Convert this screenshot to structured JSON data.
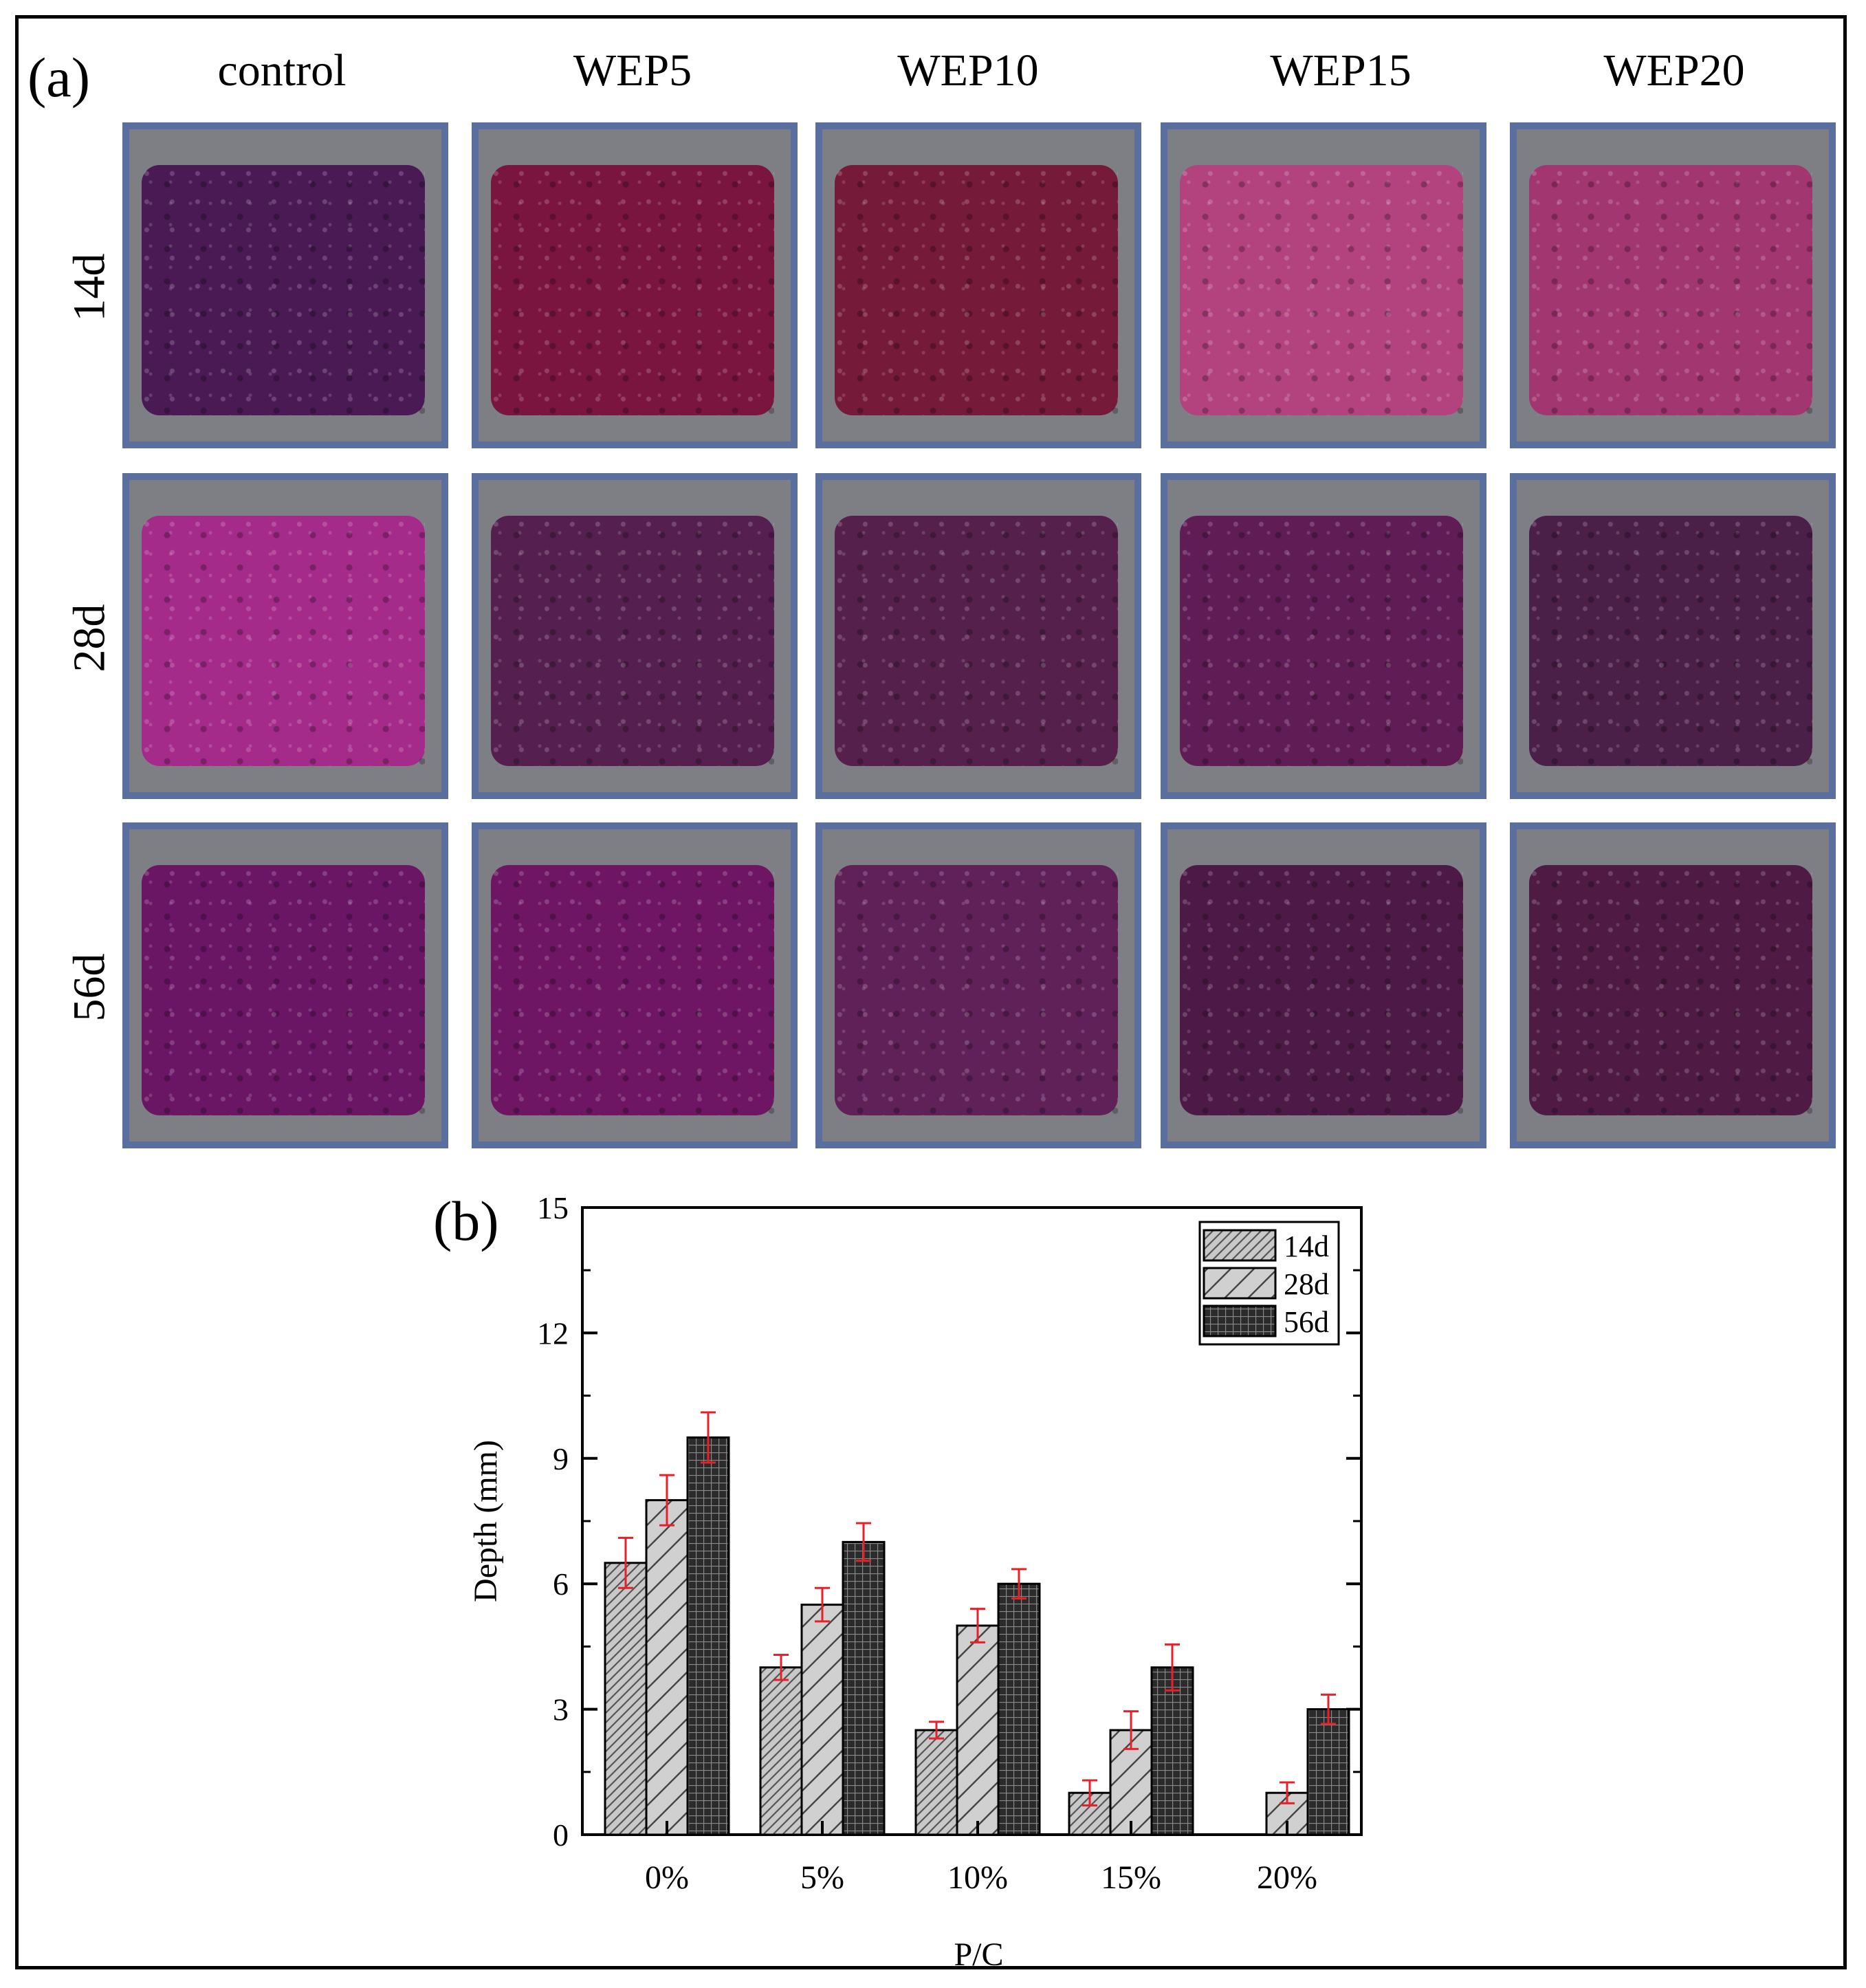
{
  "figure": {
    "panel_a_label": "(a)",
    "panel_b_label": "(b)"
  },
  "photo_grid": {
    "columns": [
      "control",
      "WEP5",
      "WEP10",
      "WEP15",
      "WEP20"
    ],
    "rows": [
      "14d",
      "28d",
      "56d"
    ],
    "stain_colors": [
      [
        "#4a1a55",
        "#7a1540",
        "#761a3a",
        "#b3437f",
        "#a23670"
      ],
      [
        "#a42b8a",
        "#55204f",
        "#56204c",
        "#601c55",
        "#4a1f48"
      ],
      [
        "#6b1565",
        "#6e1663",
        "#602058",
        "#4d1a47",
        "#4f1b45"
      ]
    ]
  },
  "chart_data": {
    "type": "bar",
    "categories": [
      "0%",
      "5%",
      "10%",
      "15%",
      "20%"
    ],
    "xlabel": "P/C",
    "ylabel": "Depth (mm)",
    "ylim": [
      0,
      15
    ],
    "yticks": [
      0,
      3,
      6,
      9,
      12,
      15
    ],
    "legend_placement": "top-right",
    "series": [
      {
        "name": "14d",
        "values": [
          6.5,
          4.0,
          2.5,
          1.0,
          0
        ],
        "errors": [
          0.6,
          0.3,
          0.2,
          0.3,
          0
        ],
        "fill": "#c8c8c8",
        "pattern": "diagonal-dense"
      },
      {
        "name": "28d",
        "values": [
          8.0,
          5.5,
          5.0,
          2.5,
          1.0
        ],
        "errors": [
          0.6,
          0.4,
          0.4,
          0.45,
          0.25
        ],
        "fill": "#cdcdcd",
        "pattern": "diagonal-sparse"
      },
      {
        "name": "56d",
        "values": [
          9.5,
          7.0,
          6.0,
          4.0,
          3.0
        ],
        "errors": [
          0.6,
          0.45,
          0.35,
          0.55,
          0.35
        ],
        "fill": "#2d2d2d",
        "pattern": "grid"
      }
    ],
    "error_bar_color": "#e8202a"
  }
}
